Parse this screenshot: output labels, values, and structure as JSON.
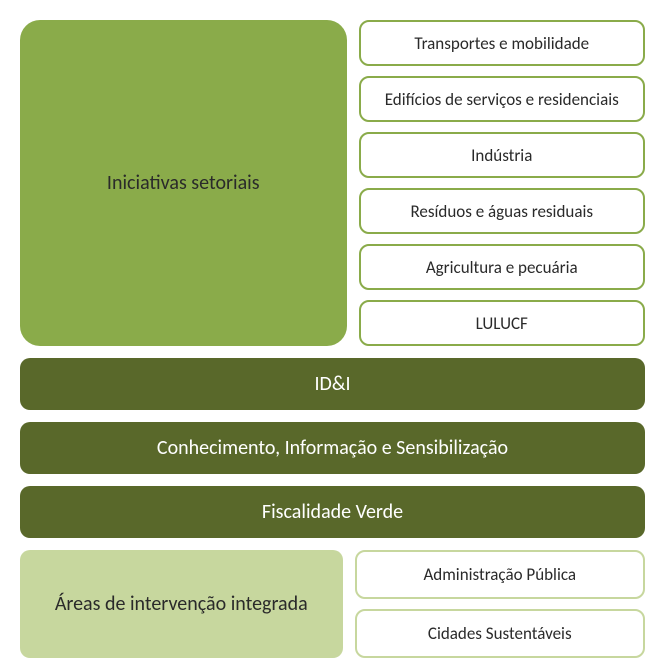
{
  "colors": {
    "olive_main": "#8aab4a",
    "olive_border": "#8aab4a",
    "dark_olive": "#59682a",
    "pale_olive": "#c7d79e",
    "text_dark": "#2a2a2a",
    "text_white": "#ffffff"
  },
  "layout": {
    "border_radius_large": 20,
    "border_radius_small": 10,
    "border_width": 2,
    "gap": 12
  },
  "sector": {
    "title": "Iniciativas setoriais",
    "title_fontsize": 20,
    "item_fontsize": 17,
    "items": [
      "Transportes e mobilidade",
      "Edifícios de serviços e residenciais",
      "Indústria",
      "Resíduos e águas residuais",
      "Agricultura e pecuária",
      "LULUCF"
    ]
  },
  "bars": [
    {
      "label": "ID&I"
    },
    {
      "label": "Conhecimento, Informação e Sensibilização"
    },
    {
      "label": "Fiscalidade Verde"
    }
  ],
  "bar_fontsize": 20,
  "areas": {
    "title": "Áreas de intervenção integrada",
    "title_fontsize": 20,
    "item_fontsize": 17,
    "items": [
      "Administração Pública",
      "Cidades Sustentáveis"
    ]
  }
}
